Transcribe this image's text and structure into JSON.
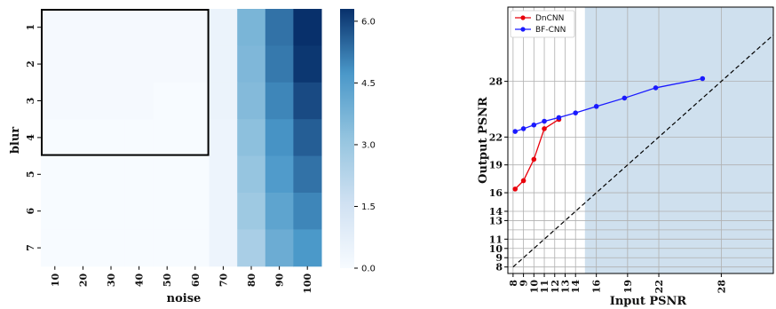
{
  "chart_data": [
    {
      "type": "heatmap",
      "xlabel": "noise",
      "ylabel": "blur",
      "x_categories": [
        "10",
        "20",
        "30",
        "40",
        "50",
        "60",
        "70",
        "80",
        "90",
        "100"
      ],
      "y_categories": [
        "1",
        "2",
        "3",
        "4",
        "5",
        "6",
        "7"
      ],
      "values": [
        [
          0.1,
          0.1,
          0.1,
          0.1,
          0.1,
          0.1,
          0.5,
          3.7,
          5.3,
          6.3
        ],
        [
          0.1,
          0.1,
          0.1,
          0.1,
          0.1,
          0.1,
          0.5,
          3.6,
          5.2,
          6.2
        ],
        [
          0.1,
          0.1,
          0.1,
          0.1,
          0.0,
          0.0,
          0.5,
          3.5,
          5.0,
          5.9
        ],
        [
          0.0,
          0.0,
          0.0,
          0.0,
          0.0,
          0.0,
          0.4,
          3.3,
          4.8,
          5.6
        ],
        [
          0.0,
          0.0,
          0.0,
          0.0,
          0.0,
          0.0,
          0.4,
          3.1,
          4.6,
          5.3
        ],
        [
          0.0,
          0.0,
          0.0,
          0.0,
          0.0,
          0.0,
          0.4,
          2.9,
          4.3,
          5.0
        ],
        [
          0.0,
          0.0,
          0.0,
          0.0,
          0.0,
          0.0,
          0.4,
          2.6,
          4.0,
          4.7
        ]
      ],
      "highlight_box": {
        "x_categories": [
          "10",
          "60"
        ],
        "y_categories": [
          "1",
          "4"
        ]
      },
      "colorbar": {
        "ticks": [
          "0.0",
          "1.5",
          "3.0",
          "4.5",
          "6.0"
        ],
        "range": [
          0,
          6.3
        ]
      }
    },
    {
      "type": "line",
      "xlabel": "Input PSNR",
      "ylabel": "Output PSNR",
      "x_ticks": [
        "8",
        "9",
        "10",
        "11",
        "12",
        "13",
        "14",
        "16",
        "19",
        "22",
        "28"
      ],
      "y_ticks": [
        "8",
        "9",
        "10",
        "11",
        "13",
        "14",
        "16",
        "19",
        "22",
        "28"
      ],
      "x_gridlines": [
        8,
        9,
        10,
        11,
        12,
        13,
        14,
        16,
        19,
        22,
        28
      ],
      "y_gridlines": [
        8,
        9,
        10,
        11,
        12,
        13,
        14,
        16,
        19,
        22,
        28
      ],
      "xlim": [
        7.5,
        33
      ],
      "ylim": [
        7.3,
        36
      ],
      "shaded_x_range": [
        14.9,
        33
      ],
      "legend_position": "upper-left",
      "series": [
        {
          "name": "DnCNN",
          "color": "#e8000b",
          "x": [
            8.2,
            9,
            10,
            11,
            12.4
          ],
          "y": [
            16.4,
            17.3,
            19.6,
            22.9,
            23.9
          ]
        },
        {
          "name": "BF-CNN",
          "color": "#1a1aff",
          "x": [
            8.2,
            9,
            10,
            11,
            12.4,
            14,
            16,
            18.7,
            21.7,
            26.2
          ],
          "y": [
            22.6,
            22.9,
            23.3,
            23.7,
            24.1,
            24.6,
            25.3,
            26.2,
            27.3,
            28.3
          ]
        },
        {
          "name": "",
          "color": "#000000",
          "dash": true,
          "x": [
            8,
            33
          ],
          "y": [
            8,
            33
          ]
        }
      ]
    }
  ]
}
